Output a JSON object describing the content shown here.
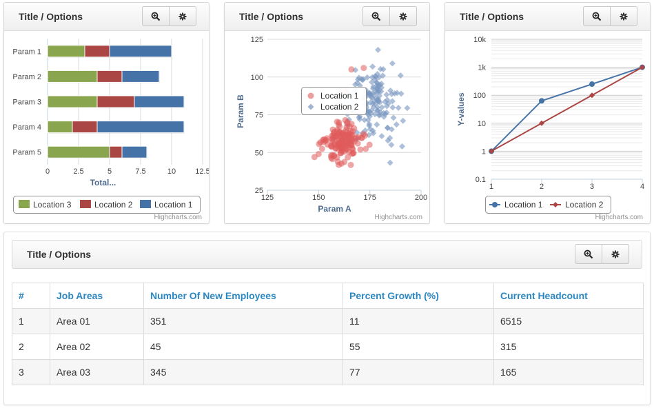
{
  "panels": [
    {
      "title": "Title / Options"
    },
    {
      "title": "Title / Options"
    },
    {
      "title": "Title / Options"
    },
    {
      "title": "Title / Options"
    }
  ],
  "icons": {
    "zoom": "zoom-in-icon",
    "settings": "gear-icon"
  },
  "credit": "Highcharts.com",
  "chart_data": [
    {
      "type": "bar",
      "stacked": true,
      "orientation": "horizontal",
      "categories": [
        "Param 1",
        "Param 2",
        "Param 3",
        "Param 4",
        "Param 5"
      ],
      "series": [
        {
          "name": "Location 3",
          "color": "#89a54e",
          "values": [
            3,
            4,
            4,
            2,
            5
          ]
        },
        {
          "name": "Location 2",
          "color": "#aa4643",
          "values": [
            2,
            2,
            3,
            2,
            1
          ]
        },
        {
          "name": "Location 1",
          "color": "#4572a7",
          "values": [
            5,
            3,
            4,
            7,
            2
          ]
        }
      ],
      "xlabel": "Total...",
      "xlim": [
        0,
        12.5
      ],
      "xticks": [
        "0",
        "2.5",
        "5",
        "7.5",
        "10",
        "12.5"
      ],
      "legend": "bottom"
    },
    {
      "type": "scatter",
      "series": [
        {
          "name": "Location 1",
          "color": "#e05b5b",
          "marker": "circle",
          "cx": 162,
          "cy": 57,
          "sx": 4.5,
          "sy": 6.0,
          "n": 150,
          "outliers": [
            [
              166,
              105
            ],
            [
              172,
              106
            ],
            [
              163,
              90
            ],
            [
              150,
              49
            ],
            [
              148,
              47
            ]
          ]
        },
        {
          "name": "Location 2",
          "color": "#7896c0",
          "marker": "diamond",
          "cx": 176,
          "cy": 81,
          "sx": 6.5,
          "sy": 10.5,
          "n": 150,
          "outliers": [
            [
              179,
              118
            ],
            [
              186,
              109
            ],
            [
              190,
              101
            ],
            [
              158,
              82
            ]
          ]
        }
      ],
      "xlabel": "Param A",
      "ylabel": "Param B",
      "xlim": [
        125,
        200
      ],
      "ylim": [
        25,
        125
      ],
      "xticks": [
        "125",
        "150",
        "175",
        "200"
      ],
      "yticks": [
        "25",
        "50",
        "75",
        "100",
        "125"
      ],
      "legend": "top-left"
    },
    {
      "type": "line",
      "yscale": "log",
      "x": [
        1,
        2,
        3,
        4
      ],
      "series": [
        {
          "name": "Location 1",
          "color": "#4572a7",
          "marker": "circle",
          "values": [
            1,
            63,
            250,
            1000
          ]
        },
        {
          "name": "Location 2",
          "color": "#aa4643",
          "marker": "diamond",
          "values": [
            1,
            10,
            100,
            1000
          ]
        }
      ],
      "ylabel": "Y-values",
      "xticks": [
        "1",
        "2",
        "3",
        "4"
      ],
      "yticks": [
        "0.1",
        "1",
        "10",
        "100",
        "1k",
        "10k"
      ],
      "legend": "bottom"
    },
    {
      "type": "table",
      "columns": [
        "#",
        "Job Areas",
        "Number Of New Employees",
        "Percent Growth (%)",
        "Current Headcount"
      ],
      "rows": [
        [
          "1",
          "Area 01",
          "351",
          "11",
          "6515"
        ],
        [
          "2",
          "Area 02",
          "45",
          "55",
          "315"
        ],
        [
          "3",
          "Area 03",
          "345",
          "77",
          "165"
        ]
      ]
    }
  ]
}
